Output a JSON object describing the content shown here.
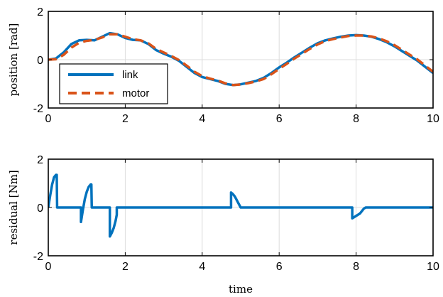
{
  "chart_data": [
    {
      "type": "line",
      "xlabel": "",
      "ylabel": "position [rad]",
      "xlim": [
        0,
        10
      ],
      "ylim": [
        -2,
        2
      ],
      "xticks": [
        0,
        2,
        4,
        6,
        8,
        10
      ],
      "yticks": [
        -2,
        0,
        2
      ],
      "grid": true,
      "legend": "bottom-left",
      "series": [
        {
          "name": "link",
          "color": "#0072bd",
          "style": "solid",
          "points": [
            [
              0,
              0
            ],
            [
              0.2,
              0.05
            ],
            [
              0.4,
              0.3
            ],
            [
              0.6,
              0.65
            ],
            [
              0.8,
              0.8
            ],
            [
              1.0,
              0.82
            ],
            [
              1.2,
              0.8
            ],
            [
              1.4,
              0.95
            ],
            [
              1.6,
              1.1
            ],
            [
              1.8,
              1.05
            ],
            [
              2.0,
              0.9
            ],
            [
              2.2,
              0.82
            ],
            [
              2.4,
              0.8
            ],
            [
              2.6,
              0.65
            ],
            [
              2.8,
              0.4
            ],
            [
              3.0,
              0.25
            ],
            [
              3.2,
              0.12
            ],
            [
              3.4,
              -0.05
            ],
            [
              3.6,
              -0.3
            ],
            [
              3.8,
              -0.55
            ],
            [
              4.0,
              -0.72
            ],
            [
              4.2,
              -0.8
            ],
            [
              4.4,
              -0.88
            ],
            [
              4.6,
              -1.0
            ],
            [
              4.8,
              -1.05
            ],
            [
              5.0,
              -1.02
            ],
            [
              5.2,
              -0.95
            ],
            [
              5.4,
              -0.88
            ],
            [
              5.6,
              -0.75
            ],
            [
              5.8,
              -0.55
            ],
            [
              6.0,
              -0.32
            ],
            [
              6.2,
              -0.12
            ],
            [
              6.4,
              0.1
            ],
            [
              6.6,
              0.3
            ],
            [
              6.8,
              0.5
            ],
            [
              7.0,
              0.68
            ],
            [
              7.2,
              0.8
            ],
            [
              7.4,
              0.88
            ],
            [
              7.6,
              0.95
            ],
            [
              7.8,
              1.0
            ],
            [
              8.0,
              1.02
            ],
            [
              8.2,
              1.0
            ],
            [
              8.4,
              0.95
            ],
            [
              8.6,
              0.85
            ],
            [
              8.8,
              0.72
            ],
            [
              9.0,
              0.55
            ],
            [
              9.2,
              0.35
            ],
            [
              9.4,
              0.15
            ],
            [
              9.6,
              -0.05
            ],
            [
              9.8,
              -0.3
            ],
            [
              10.0,
              -0.55
            ]
          ]
        },
        {
          "name": "motor",
          "color": "#d95319",
          "style": "dashed",
          "points": [
            [
              0,
              0
            ],
            [
              0.2,
              0.02
            ],
            [
              0.4,
              0.2
            ],
            [
              0.6,
              0.5
            ],
            [
              0.8,
              0.7
            ],
            [
              1.0,
              0.78
            ],
            [
              1.2,
              0.82
            ],
            [
              1.4,
              0.92
            ],
            [
              1.6,
              1.05
            ],
            [
              1.8,
              1.05
            ],
            [
              2.0,
              0.95
            ],
            [
              2.2,
              0.85
            ],
            [
              2.4,
              0.8
            ],
            [
              2.6,
              0.68
            ],
            [
              2.8,
              0.45
            ],
            [
              3.0,
              0.3
            ],
            [
              3.2,
              0.15
            ],
            [
              3.4,
              -0.02
            ],
            [
              3.6,
              -0.25
            ],
            [
              3.8,
              -0.5
            ],
            [
              4.0,
              -0.68
            ],
            [
              4.2,
              -0.78
            ],
            [
              4.4,
              -0.86
            ],
            [
              4.6,
              -0.98
            ],
            [
              4.8,
              -1.05
            ],
            [
              5.0,
              -1.03
            ],
            [
              5.2,
              -0.97
            ],
            [
              5.4,
              -0.9
            ],
            [
              5.6,
              -0.8
            ],
            [
              5.8,
              -0.6
            ],
            [
              6.0,
              -0.38
            ],
            [
              6.2,
              -0.17
            ],
            [
              6.4,
              0.05
            ],
            [
              6.6,
              0.25
            ],
            [
              6.8,
              0.45
            ],
            [
              7.0,
              0.63
            ],
            [
              7.2,
              0.77
            ],
            [
              7.4,
              0.85
            ],
            [
              7.6,
              0.92
            ],
            [
              7.8,
              0.98
            ],
            [
              8.0,
              1.0
            ],
            [
              8.2,
              1.0
            ],
            [
              8.4,
              0.96
            ],
            [
              8.6,
              0.88
            ],
            [
              8.8,
              0.76
            ],
            [
              9.0,
              0.6
            ],
            [
              9.2,
              0.4
            ],
            [
              9.4,
              0.2
            ],
            [
              9.6,
              0.0
            ],
            [
              9.8,
              -0.25
            ],
            [
              10.0,
              -0.5
            ]
          ]
        }
      ]
    },
    {
      "type": "line",
      "xlabel": "time",
      "ylabel": "residual [Nm]",
      "xlim": [
        0,
        10
      ],
      "ylim": [
        -2,
        2
      ],
      "xticks": [
        0,
        2,
        4,
        6,
        8,
        10
      ],
      "yticks": [
        -2,
        0,
        2
      ],
      "grid": true,
      "series": [
        {
          "color": "#0072bd",
          "style": "solid",
          "points": [
            [
              0,
              0
            ],
            [
              0.05,
              0.5
            ],
            [
              0.1,
              0.95
            ],
            [
              0.15,
              1.25
            ],
            [
              0.2,
              1.35
            ],
            [
              0.22,
              1.35
            ],
            [
              0.23,
              0
            ],
            [
              0.85,
              0
            ],
            [
              0.85,
              -0.6
            ],
            [
              0.9,
              -0.1
            ],
            [
              0.95,
              0.35
            ],
            [
              1.0,
              0.65
            ],
            [
              1.05,
              0.85
            ],
            [
              1.1,
              0.95
            ],
            [
              1.12,
              0.95
            ],
            [
              1.13,
              0
            ],
            [
              1.6,
              0
            ],
            [
              1.6,
              -1.2
            ],
            [
              1.65,
              -1.05
            ],
            [
              1.7,
              -0.85
            ],
            [
              1.75,
              -0.55
            ],
            [
              1.78,
              -0.3
            ],
            [
              1.78,
              0
            ],
            [
              4.75,
              0
            ],
            [
              4.75,
              0.62
            ],
            [
              4.8,
              0.55
            ],
            [
              4.85,
              0.45
            ],
            [
              4.9,
              0.3
            ],
            [
              4.95,
              0.15
            ],
            [
              5.0,
              0
            ],
            [
              7.9,
              0
            ],
            [
              7.9,
              -0.45
            ],
            [
              8.0,
              -0.35
            ],
            [
              8.1,
              -0.25
            ],
            [
              8.2,
              -0.05
            ],
            [
              8.25,
              0
            ],
            [
              10,
              0
            ]
          ]
        }
      ]
    }
  ]
}
